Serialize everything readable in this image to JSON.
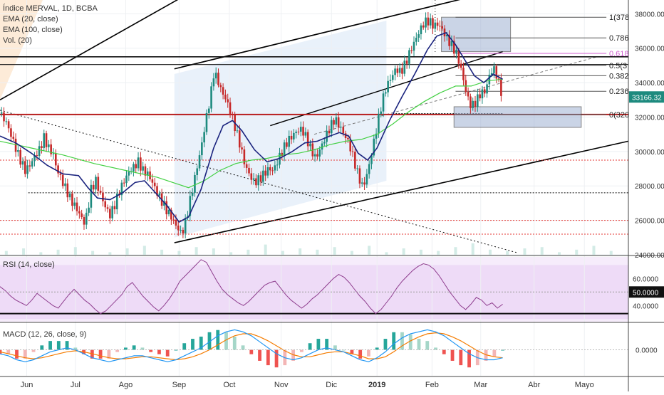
{
  "header": {
    "symbol_line": "Índice MERVAL, 1D, BCBA",
    "ema20_label": "EMA (20, close)",
    "ema100_label": "EMA (100, close)",
    "vol_label": "Vol. (20)"
  },
  "colors": {
    "candle_up": "#1d8a7e",
    "candle_down": "#c62828",
    "ema20": "#1a237e",
    "ema100": "#43d043",
    "rsi": "#8e3d8e",
    "macd": "#2196f3",
    "signal": "#f57c00",
    "support": "#b71c1c",
    "dotted_red": "#e53935",
    "channel_fill": "#dbe8f7",
    "fib_box": "#9fb2d3"
  },
  "chart_data": [
    {
      "type": "candlestick",
      "title": "Índice MERVAL, 1D, BCBA",
      "y_ticks": [
        "38000.00",
        "36000.00",
        "34000.00",
        "32000.00",
        "30000.00",
        "28000.00",
        "26000.00",
        "24000.00"
      ],
      "ylim": [
        24000,
        38800
      ],
      "last_price": "33166.32",
      "x_labels": [
        "Jun",
        "Jul",
        "Ago",
        "Sep",
        "Oct",
        "Nov",
        "Dic",
        "2019",
        "Feb",
        "Mar",
        "Abr",
        "Mayo"
      ],
      "fib_labels": [
        "1(378",
        "0.786",
        "0.618",
        "0.5(3",
        "0.382",
        "0.236",
        "0(320"
      ],
      "price_path": [
        [
          0,
          32200
        ],
        [
          4,
          31700
        ],
        [
          8,
          30700
        ],
        [
          12,
          29700
        ],
        [
          16,
          28900
        ],
        [
          19,
          29200
        ],
        [
          22,
          29700
        ],
        [
          25,
          30100
        ],
        [
          28,
          30800
        ],
        [
          31,
          30200
        ],
        [
          34,
          29800
        ],
        [
          36,
          29000
        ],
        [
          39,
          28400
        ],
        [
          42,
          27800
        ],
        [
          45,
          27200
        ],
        [
          48,
          26800
        ],
        [
          51,
          26300
        ],
        [
          54,
          25800
        ],
        [
          56,
          26700
        ],
        [
          58,
          27800
        ],
        [
          61,
          28300
        ],
        [
          64,
          27500
        ],
        [
          67,
          26800
        ],
        [
          70,
          26300
        ],
        [
          73,
          26900
        ],
        [
          76,
          27700
        ],
        [
          79,
          28300
        ],
        [
          82,
          28800
        ],
        [
          85,
          29100
        ],
        [
          88,
          29400
        ],
        [
          91,
          28900
        ],
        [
          94,
          28700
        ],
        [
          97,
          28200
        ],
        [
          100,
          27600
        ],
        [
          103,
          27100
        ],
        [
          106,
          26600
        ],
        [
          109,
          26200
        ],
        [
          112,
          25700
        ],
        [
          115,
          25300
        ],
        [
          117,
          25500
        ],
        [
          119,
          26300
        ],
        [
          122,
          27600
        ],
        [
          125,
          28900
        ],
        [
          128,
          30200
        ],
        [
          131,
          31800
        ],
        [
          134,
          33200
        ],
        [
          136,
          34500
        ],
        [
          138,
          34300
        ],
        [
          141,
          33500
        ],
        [
          144,
          33000
        ],
        [
          147,
          32200
        ],
        [
          150,
          31300
        ],
        [
          153,
          30300
        ],
        [
          156,
          29200
        ],
        [
          159,
          28600
        ],
        [
          162,
          28200
        ],
        [
          165,
          28400
        ],
        [
          168,
          28700
        ],
        [
          171,
          29000
        ],
        [
          174,
          28900
        ],
        [
          177,
          29500
        ],
        [
          180,
          30100
        ],
        [
          183,
          30600
        ],
        [
          186,
          30900
        ],
        [
          189,
          31200
        ],
        [
          192,
          31300
        ],
        [
          195,
          30800
        ],
        [
          198,
          30100
        ],
        [
          201,
          29600
        ],
        [
          204,
          30200
        ],
        [
          207,
          30800
        ],
        [
          210,
          31400
        ],
        [
          213,
          31900
        ],
        [
          216,
          31500
        ],
        [
          219,
          31000
        ],
        [
          222,
          30500
        ],
        [
          225,
          29600
        ],
        [
          228,
          28600
        ],
        [
          231,
          27900
        ],
        [
          234,
          28800
        ],
        [
          237,
          30100
        ],
        [
          240,
          31500
        ],
        [
          243,
          32800
        ],
        [
          246,
          33800
        ],
        [
          249,
          34300
        ],
        [
          252,
          34800
        ],
        [
          255,
          34600
        ],
        [
          258,
          35100
        ],
        [
          261,
          35800
        ],
        [
          264,
          36400
        ],
        [
          267,
          37000
        ],
        [
          270,
          37500
        ],
        [
          273,
          37600
        ],
        [
          276,
          37300
        ],
        [
          279,
          37400
        ],
        [
          282,
          37000
        ],
        [
          285,
          36500
        ],
        [
          288,
          36100
        ],
        [
          291,
          35600
        ],
        [
          294,
          34600
        ],
        [
          297,
          33300
        ],
        [
          300,
          32600
        ],
        [
          303,
          32900
        ],
        [
          306,
          33400
        ],
        [
          309,
          33500
        ],
        [
          312,
          34600
        ],
        [
          315,
          34800
        ],
        [
          318,
          33800
        ],
        [
          320,
          33166
        ]
      ],
      "ema20_path": [
        [
          0,
          30900
        ],
        [
          10,
          30500
        ],
        [
          20,
          29900
        ],
        [
          30,
          29200
        ],
        [
          40,
          28700
        ],
        [
          50,
          28600
        ],
        [
          56,
          27900
        ],
        [
          62,
          27300
        ],
        [
          70,
          27200
        ],
        [
          78,
          27600
        ],
        [
          86,
          28200
        ],
        [
          92,
          28300
        ],
        [
          98,
          27700
        ],
        [
          106,
          26900
        ],
        [
          114,
          25900
        ],
        [
          120,
          26200
        ],
        [
          128,
          27800
        ],
        [
          136,
          30200
        ],
        [
          142,
          31500
        ],
        [
          148,
          31800
        ],
        [
          154,
          31200
        ],
        [
          162,
          30100
        ],
        [
          170,
          29400
        ],
        [
          178,
          29600
        ],
        [
          186,
          30000
        ],
        [
          194,
          30500
        ],
        [
          202,
          30600
        ],
        [
          210,
          30900
        ],
        [
          216,
          31100
        ],
        [
          222,
          30900
        ],
        [
          228,
          29900
        ],
        [
          234,
          29500
        ],
        [
          240,
          30200
        ],
        [
          248,
          31800
        ],
        [
          256,
          33200
        ],
        [
          264,
          34500
        ],
        [
          272,
          35900
        ],
        [
          278,
          36700
        ],
        [
          284,
          36900
        ],
        [
          290,
          36200
        ],
        [
          296,
          35300
        ],
        [
          302,
          34400
        ],
        [
          308,
          34000
        ],
        [
          314,
          34500
        ],
        [
          320,
          34200
        ]
      ],
      "ema100_path": [
        [
          0,
          30600
        ],
        [
          20,
          30200
        ],
        [
          40,
          29800
        ],
        [
          60,
          29300
        ],
        [
          80,
          28900
        ],
        [
          100,
          28500
        ],
        [
          110,
          28200
        ],
        [
          120,
          27900
        ],
        [
          130,
          28300
        ],
        [
          140,
          28900
        ],
        [
          150,
          29300
        ],
        [
          160,
          29500
        ],
        [
          170,
          29600
        ],
        [
          180,
          29800
        ],
        [
          190,
          29900
        ],
        [
          200,
          30100
        ],
        [
          210,
          30400
        ],
        [
          220,
          30600
        ],
        [
          230,
          30700
        ],
        [
          240,
          31000
        ],
        [
          250,
          31600
        ],
        [
          260,
          32300
        ],
        [
          270,
          32900
        ],
        [
          280,
          33400
        ],
        [
          290,
          33800
        ],
        [
          300,
          33800
        ],
        [
          310,
          34100
        ],
        [
          320,
          34200
        ]
      ],
      "volume": [
        0.3,
        0.5,
        0.2,
        0.4,
        0.6,
        0.3,
        0.2,
        0.5,
        0.7,
        0.4,
        0.3,
        0.6,
        0.5,
        0.2,
        0.4,
        0.8,
        0.3,
        0.5,
        0.4,
        0.6,
        0.3,
        0.7,
        0.2,
        0.5,
        0.4,
        0.3,
        0.6,
        0.9,
        0.4,
        0.3,
        0.5,
        0.6,
        0.2,
        0.4,
        0.7,
        0.3
      ]
    },
    {
      "type": "line",
      "title": "RSI (14, close)",
      "y_ticks": [
        "60.0000",
        "50.0000",
        "40.0000"
      ],
      "ylim": [
        28,
        76
      ],
      "current": "50.0000",
      "values": [
        54,
        51,
        47,
        44,
        42,
        40,
        44,
        49,
        46,
        43,
        40,
        38,
        43,
        48,
        52,
        48,
        44,
        41,
        37,
        34,
        36,
        40,
        44,
        48,
        54,
        57,
        52,
        47,
        43,
        39,
        36,
        40,
        45,
        51,
        58,
        62,
        66,
        70,
        74,
        72,
        65,
        58,
        52,
        48,
        45,
        42,
        40,
        43,
        47,
        51,
        55,
        57,
        58,
        53,
        48,
        44,
        41,
        38,
        41,
        45,
        48,
        52,
        56,
        60,
        63,
        61,
        57,
        52,
        47,
        43,
        38,
        34,
        37,
        42,
        47,
        53,
        58,
        62,
        66,
        69,
        71,
        70,
        67,
        62,
        56,
        50,
        45,
        40,
        37,
        41,
        46,
        44,
        40,
        42,
        38,
        41
      ]
    },
    {
      "type": "line",
      "title": "MACD (12, 26, close, 9)",
      "y_ticks": [
        "0.0000"
      ],
      "ylim": [
        -1.3,
        1.3
      ],
      "macd": [
        -0.2,
        -0.3,
        -0.5,
        -0.6,
        -0.5,
        -0.3,
        -0.1,
        0.0,
        0.1,
        0.0,
        -0.2,
        -0.4,
        -0.5,
        -0.6,
        -0.5,
        -0.4,
        -0.3,
        -0.3,
        -0.4,
        -0.5,
        -0.6,
        -0.5,
        -0.3,
        -0.1,
        0.1,
        0.4,
        0.7,
        0.9,
        1.0,
        0.9,
        0.7,
        0.4,
        0.1,
        -0.2,
        -0.4,
        -0.5,
        -0.4,
        -0.2,
        0.0,
        0.1,
        0.0,
        -0.1,
        -0.3,
        -0.5,
        -0.6,
        -0.4,
        -0.1,
        0.3,
        0.6,
        0.8,
        0.9,
        1.0,
        0.9,
        0.7,
        0.4,
        0.1,
        -0.2,
        -0.4,
        -0.5,
        -0.5,
        -0.4
      ],
      "signal": [
        -0.1,
        -0.2,
        -0.3,
        -0.4,
        -0.45,
        -0.4,
        -0.3,
        -0.2,
        -0.1,
        -0.05,
        -0.1,
        -0.2,
        -0.3,
        -0.4,
        -0.45,
        -0.45,
        -0.4,
        -0.35,
        -0.35,
        -0.4,
        -0.45,
        -0.5,
        -0.45,
        -0.35,
        -0.2,
        0.0,
        0.25,
        0.5,
        0.7,
        0.8,
        0.8,
        0.65,
        0.45,
        0.2,
        -0.05,
        -0.25,
        -0.35,
        -0.35,
        -0.25,
        -0.15,
        -0.1,
        -0.1,
        -0.2,
        -0.3,
        -0.45,
        -0.45,
        -0.35,
        -0.1,
        0.2,
        0.45,
        0.65,
        0.8,
        0.85,
        0.8,
        0.65,
        0.45,
        0.2,
        -0.05,
        -0.25,
        -0.35,
        -0.4
      ]
    }
  ]
}
